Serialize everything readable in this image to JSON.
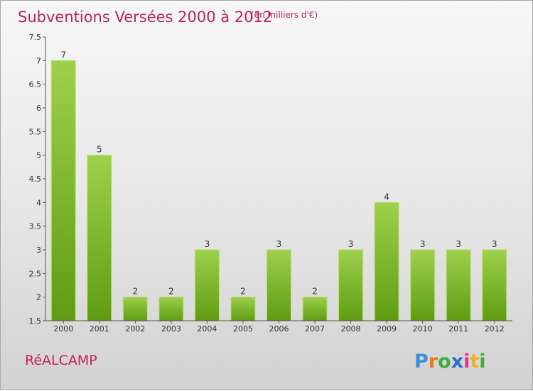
{
  "chart_data": {
    "type": "bar",
    "title": "Subventions Versées 2000 à 2012",
    "subtitle": "(en milliers d'€)",
    "categories": [
      "2000",
      "2001",
      "2002",
      "2003",
      "2004",
      "2005",
      "2006",
      "2007",
      "2008",
      "2009",
      "2010",
      "2011",
      "2012"
    ],
    "values": [
      7,
      5,
      2,
      2,
      3,
      2,
      3,
      2,
      3,
      4,
      3,
      3,
      3
    ],
    "value_labels": [
      "7",
      "5",
      "2",
      "2",
      "3",
      "2",
      "3",
      "2",
      "3",
      "4",
      "3",
      "3",
      "3"
    ],
    "ylim": [
      1.5,
      7.5
    ],
    "yticks": [
      "1.5",
      "2",
      "2.5",
      "3",
      "3.5",
      "4",
      "4.5",
      "5",
      "5.5",
      "6",
      "6.5",
      "7",
      "7.5"
    ],
    "grid": false,
    "bar_color_top": "#9ed04c",
    "bar_color_bottom": "#5f9c12"
  },
  "footer": {
    "commune": "RéALCAMP",
    "brand_letters": [
      "P",
      "r",
      "o",
      "x",
      "i",
      "t",
      "i"
    ],
    "brand_colors": [
      "#3a8fd8",
      "#e87a1c",
      "#3cae3c",
      "#2a6fd0",
      "#e03a8c",
      "#f0b020",
      "#3cae3c"
    ]
  }
}
